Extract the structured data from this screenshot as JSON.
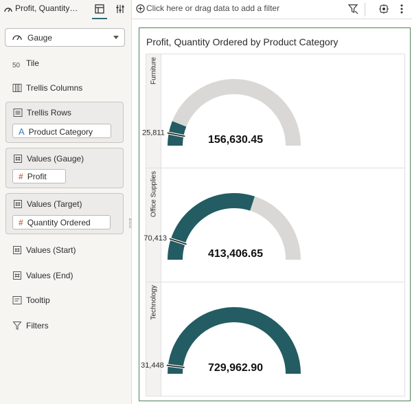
{
  "header": {
    "viz_title": "Profit, Quantity…",
    "filter_placeholder": "Click here or drag data to add a filter"
  },
  "grammar": {
    "viz_type": "Gauge",
    "sections": {
      "tile": "Tile",
      "trellis_columns": "Trellis Columns",
      "trellis_rows": "Trellis Rows",
      "values_gauge": "Values (Gauge)",
      "values_target": "Values (Target)",
      "values_start": "Values (Start)",
      "values_end": "Values (End)",
      "tooltip": "Tooltip",
      "filters": "Filters"
    },
    "pills": {
      "trellis_rows": "Product Category",
      "values_gauge": "Profit",
      "values_target": "Quantity Ordered"
    }
  },
  "colors": {
    "gauge_fill": "#235c63",
    "gauge_track": "#d9d8d6",
    "accent": "#2b6b74",
    "canvas_border": "#4f7f57"
  },
  "chart_data": {
    "type": "gauge",
    "title": "Profit, Quantity Ordered by Product Category",
    "rows": [
      {
        "category": "Furniture",
        "value_label": "156,630.45",
        "value": 156630.45,
        "target_label": "25,811",
        "target": 25811,
        "fill_fraction": 0.12,
        "target_fraction": 0.06
      },
      {
        "category": "Office Supplies",
        "value_label": "413,406.65",
        "value": 413406.65,
        "target_label": "70,413",
        "target": 70413,
        "fill_fraction": 0.6,
        "target_fraction": 0.1
      },
      {
        "category": "Technology",
        "value_label": "729,962.90",
        "value": 729962.9,
        "target_label": "31,448",
        "target": 31448,
        "fill_fraction": 1.0,
        "target_fraction": 0.04
      }
    ]
  }
}
